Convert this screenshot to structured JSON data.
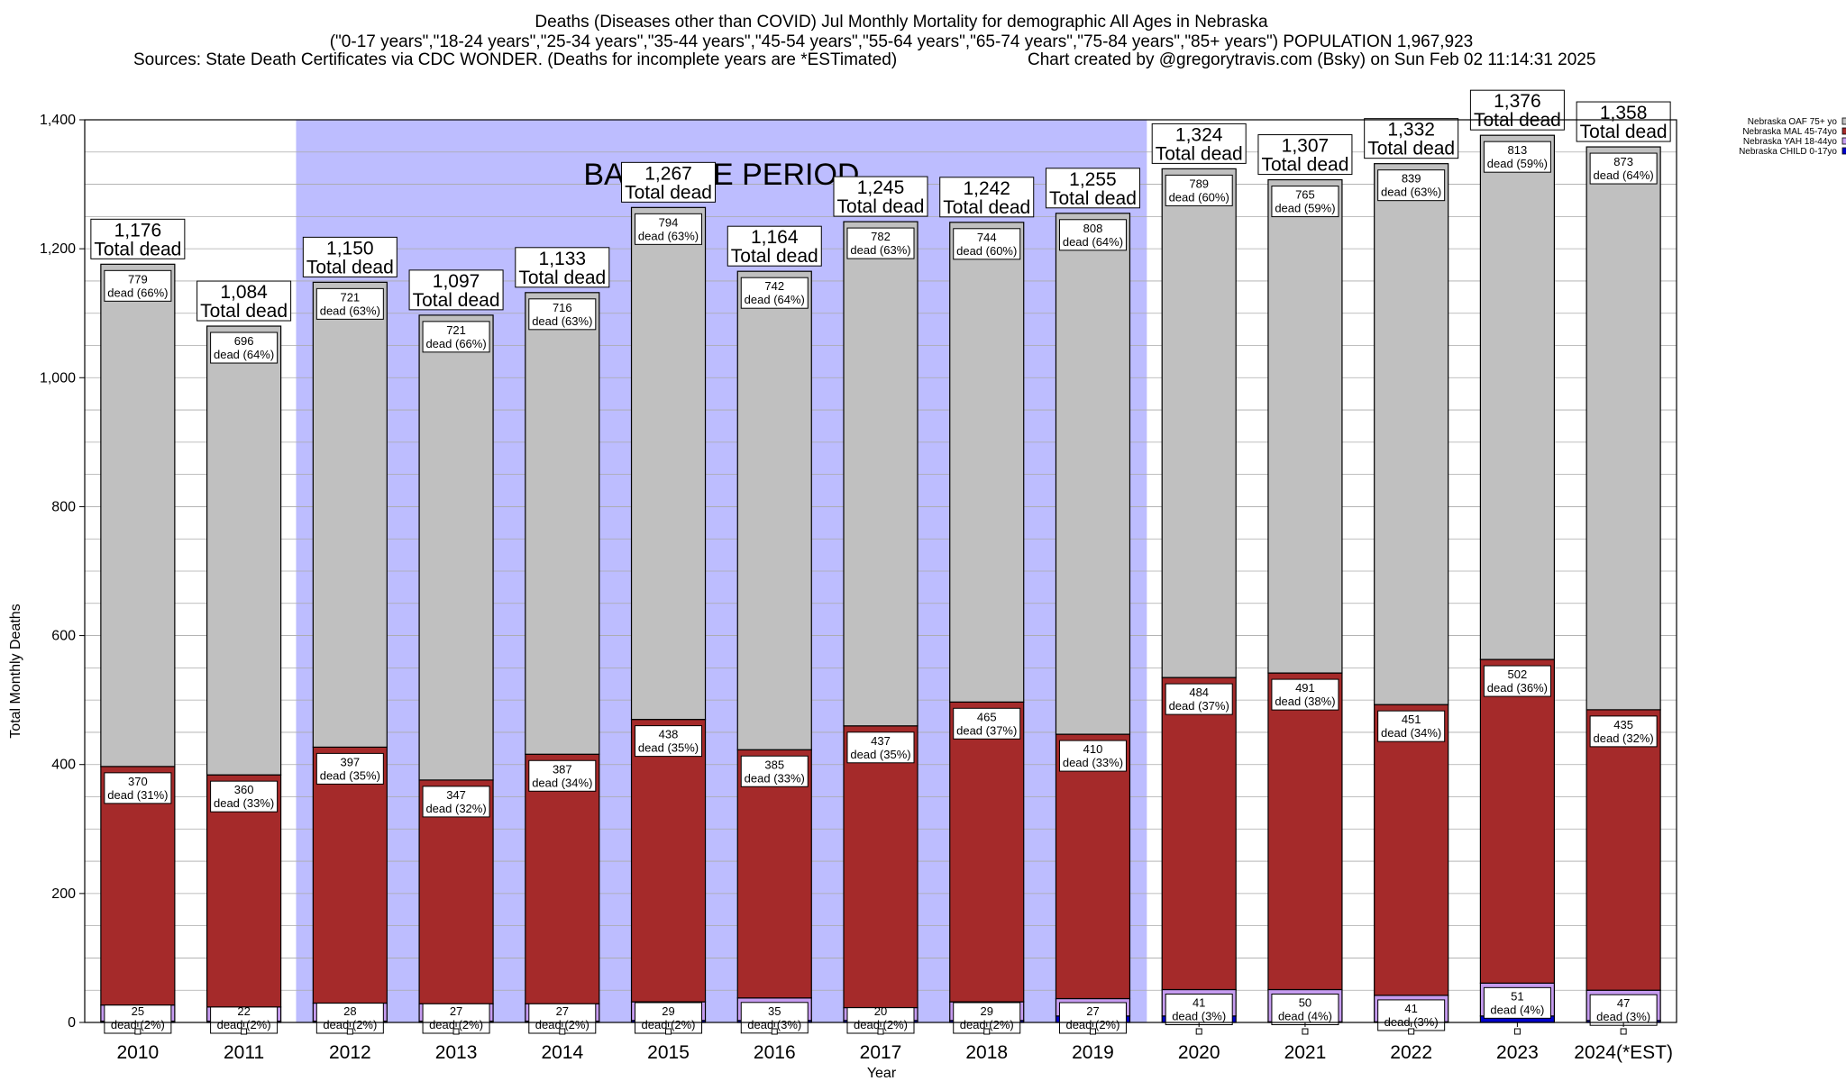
{
  "header": {
    "line1": "Deaths (Diseases other than COVID) Jul Monthly Mortality for demographic All Ages in Nebraska",
    "line2": "(\"0-17 years\",\"18-24 years\",\"25-34 years\",\"35-44 years\",\"45-54 years\",\"55-64 years\",\"65-74 years\",\"75-84 years\",\"85+ years\") POPULATION 1,967,923",
    "line3_left": "Sources: State Death Certificates via CDC WONDER. (Deaths for incomplete years are *ESTimated)",
    "line3_right": "Chart created by @gregorytravis.com (Bsky) on Sun Feb 02 11:14:31 2025"
  },
  "chart_data": {
    "type": "bar",
    "stacked": true,
    "xlabel": "Year",
    "ylabel": "Total Monthly Deaths",
    "ylim": [
      0,
      1400
    ],
    "yticks": [
      "0",
      "200",
      "400",
      "600",
      "800",
      "1,000",
      "1,200",
      "1,400"
    ],
    "grid": true,
    "legend_position": "top-right",
    "baseline_label": "BASELINE PERIOD",
    "baseline_range": [
      "2012",
      "2019"
    ],
    "dead_word": "dead",
    "total_word": "Total dead",
    "categories": [
      "2010",
      "2011",
      "2012",
      "2013",
      "2014",
      "2015",
      "2016",
      "2017",
      "2018",
      "2019",
      "2020",
      "2021",
      "2022",
      "2023",
      "2024(*EST)"
    ],
    "totals": [
      "1,176",
      "1,084",
      "1,150",
      "1,097",
      "1,133",
      "1,267",
      "1,164",
      "1,245",
      "1,242",
      "1,255",
      "1,324",
      "1,307",
      "1,332",
      "1,376",
      "1,358"
    ],
    "series": [
      {
        "name": "Nebraska CHILD 0-17yo",
        "color": "#0000cc",
        "values": [
          2,
          2,
          2,
          2,
          2,
          3,
          3,
          3,
          3,
          10,
          10,
          1,
          1,
          10,
          3
        ],
        "labels": [
          "",
          "",
          "",
          "",
          "",
          "",
          "",
          "",
          "",
          "",
          "",
          "",
          "",
          "",
          ""
        ]
      },
      {
        "name": "Nebraska YAH 18-44yo",
        "color": "#c69cf0",
        "values": [
          25,
          22,
          28,
          27,
          27,
          29,
          35,
          20,
          29,
          27,
          41,
          50,
          41,
          51,
          47
        ],
        "labels": [
          "25|dead (2%)",
          "22|dead (2%)",
          "28|dead (2%)",
          "27|dead (2%)",
          "27|dead (2%)",
          "29|dead (2%)",
          "35|dead (3%)",
          "20|dead (2%)",
          "29|dead (2%)",
          "27|dead (2%)",
          "41|dead (3%)",
          "50|dead (4%)",
          "41|dead (3%)",
          "51|dead (4%)",
          "47|dead (3%)"
        ]
      },
      {
        "name": "Nebraska MAL 45-74yo",
        "color": "#a52a2a",
        "values": [
          370,
          360,
          397,
          347,
          387,
          438,
          385,
          437,
          465,
          410,
          484,
          491,
          451,
          502,
          435
        ],
        "labels": [
          "370|dead (31%)",
          "360|dead (33%)",
          "397|dead (35%)",
          "347|dead (32%)",
          "387|dead (34%)",
          "438|dead (35%)",
          "385|dead (33%)",
          "437|dead (35%)",
          "465|dead (37%)",
          "410|dead (33%)",
          "484|dead (37%)",
          "491|dead (38%)",
          "451|dead (34%)",
          "502|dead (36%)",
          "435|dead (32%)"
        ]
      },
      {
        "name": "Nebraska OAF 75+ yo",
        "color": "#c0c0c0",
        "values": [
          779,
          696,
          721,
          721,
          716,
          794,
          742,
          782,
          744,
          808,
          789,
          765,
          839,
          813,
          873
        ],
        "labels": [
          "779|dead (66%)",
          "696|dead (64%)",
          "721|dead (63%)",
          "721|dead (66%)",
          "716|dead (63%)",
          "794|dead (63%)",
          "742|dead (64%)",
          "782|dead (63%)",
          "744|dead (60%)",
          "808|dead (64%)",
          "789|dead (60%)",
          "765|dead (59%)",
          "839|dead (63%)",
          "813|dead (59%)",
          "873|dead (64%)"
        ]
      }
    ]
  }
}
